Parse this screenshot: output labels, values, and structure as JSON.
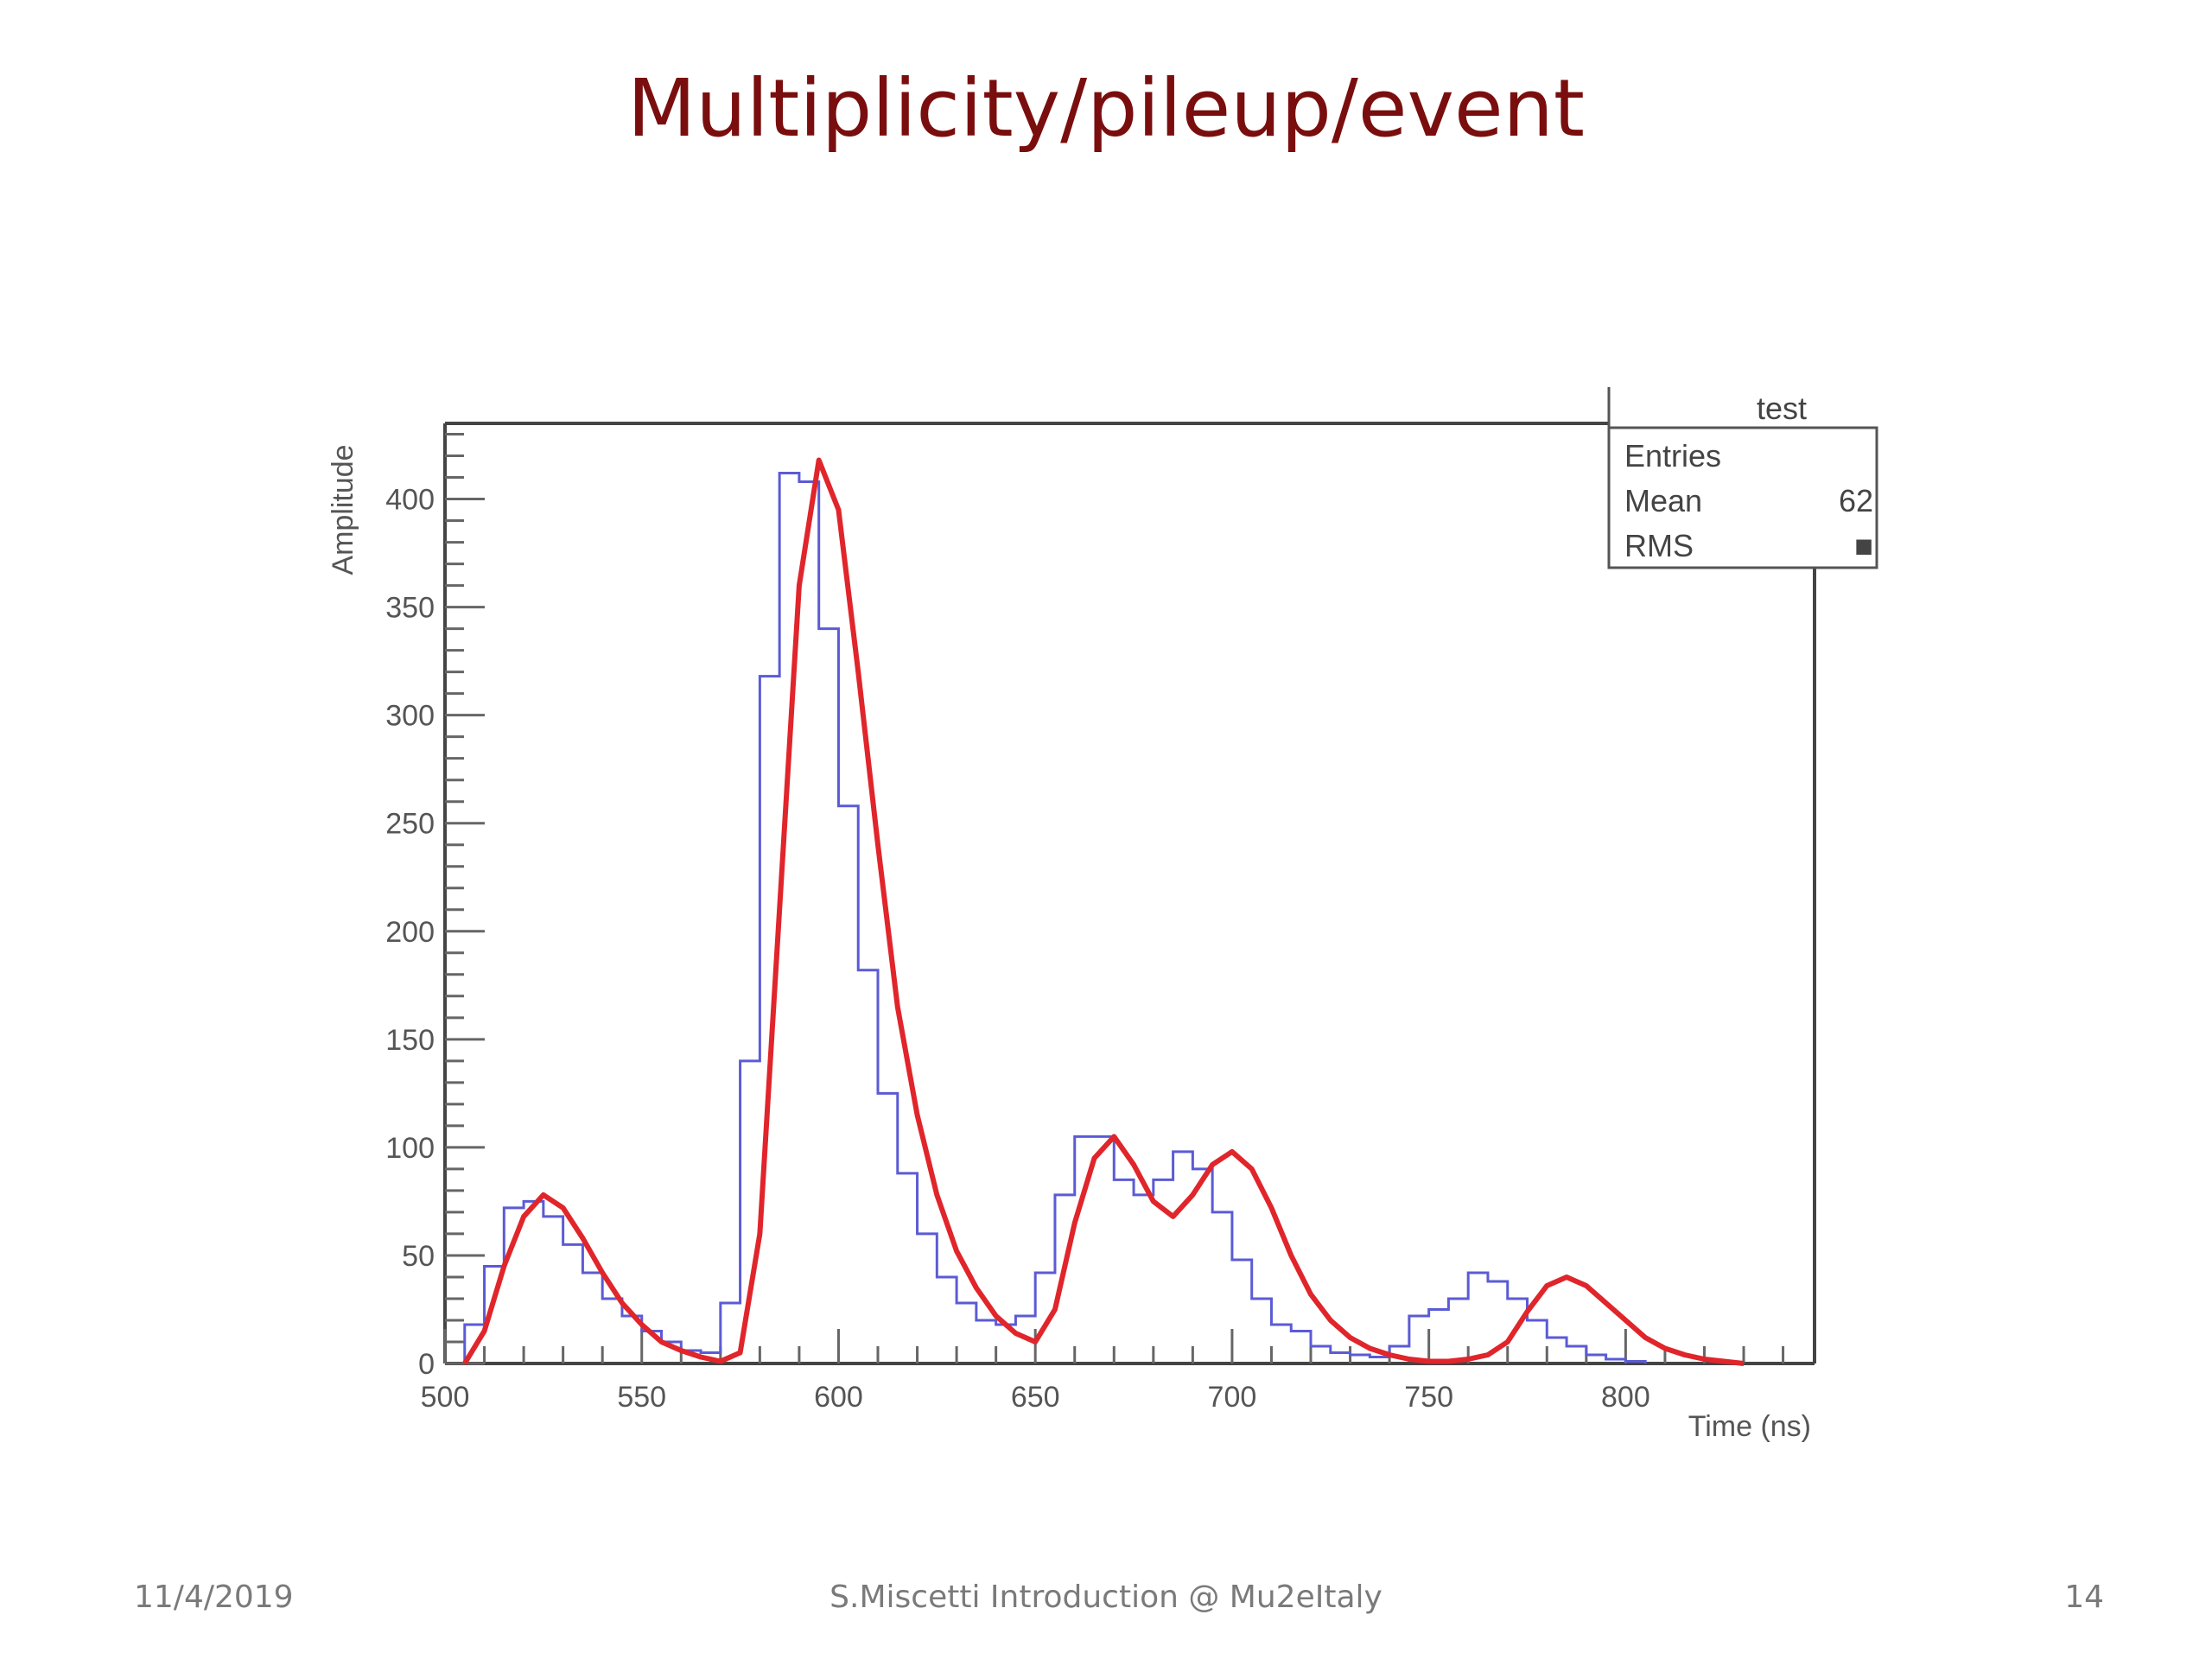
{
  "slide": {
    "title": "Multiplicity/pileup/event"
  },
  "footer": {
    "date": "11/4/2019",
    "center": "S.Miscetti Introduction @ Mu2eItaly",
    "page": "14"
  },
  "stats_box": {
    "title": "test",
    "rows": [
      {
        "label": "Entries",
        "value": ""
      },
      {
        "label": "Mean",
        "value": "62"
      },
      {
        "label": "RMS",
        "value": "■"
      }
    ]
  },
  "colors": {
    "histogram": "#5b5bd6",
    "fit": "#e0252b",
    "title": "#7a0e0e"
  },
  "chart_data": {
    "type": "line",
    "title": "",
    "xlabel": "Time (ns)",
    "ylabel": "Amplitude",
    "xlim": [
      500,
      848
    ],
    "ylim": [
      0,
      435
    ],
    "xticks": [
      500,
      550,
      600,
      650,
      700,
      750,
      800
    ],
    "yticks": [
      0,
      50,
      100,
      150,
      200,
      250,
      300,
      350,
      400
    ],
    "series": [
      {
        "kind": "histogram",
        "bin_width": 5,
        "bin_edges_start": 505,
        "values": [
          18,
          45,
          72,
          75,
          68,
          55,
          42,
          30,
          22,
          15,
          10,
          6,
          5,
          28,
          140,
          318,
          412,
          408,
          340,
          258,
          182,
          125,
          88,
          60,
          40,
          28,
          20,
          18,
          22,
          42,
          78,
          105,
          105,
          85,
          78,
          85,
          98,
          90,
          70,
          48,
          30,
          18,
          15,
          8,
          5,
          4,
          3,
          8,
          22,
          25,
          30,
          42,
          38,
          30,
          20,
          12,
          8,
          4,
          2,
          1
        ]
      },
      {
        "kind": "fit",
        "x": [
          505,
          510,
          515,
          520,
          525,
          530,
          535,
          540,
          545,
          550,
          555,
          560,
          565,
          570,
          575,
          580,
          585,
          590,
          595,
          600,
          605,
          610,
          615,
          620,
          625,
          630,
          635,
          640,
          645,
          650,
          655,
          660,
          665,
          670,
          675,
          680,
          685,
          690,
          695,
          700,
          705,
          710,
          715,
          720,
          725,
          730,
          735,
          740,
          745,
          750,
          755,
          760,
          765,
          770,
          775,
          780,
          785,
          790,
          795,
          800,
          805,
          810,
          815,
          820,
          825,
          830
        ],
        "y": [
          0,
          15,
          45,
          68,
          78,
          72,
          58,
          42,
          28,
          18,
          10,
          6,
          3,
          1,
          5,
          60,
          210,
          360,
          418,
          395,
          320,
          240,
          165,
          115,
          78,
          52,
          35,
          22,
          14,
          10,
          25,
          65,
          95,
          105,
          92,
          75,
          68,
          78,
          92,
          98,
          90,
          72,
          50,
          32,
          20,
          12,
          7,
          4,
          2,
          1,
          1,
          2,
          4,
          10,
          24,
          36,
          40,
          36,
          28,
          20,
          12,
          7,
          4,
          2,
          1,
          0
        ]
      }
    ]
  }
}
